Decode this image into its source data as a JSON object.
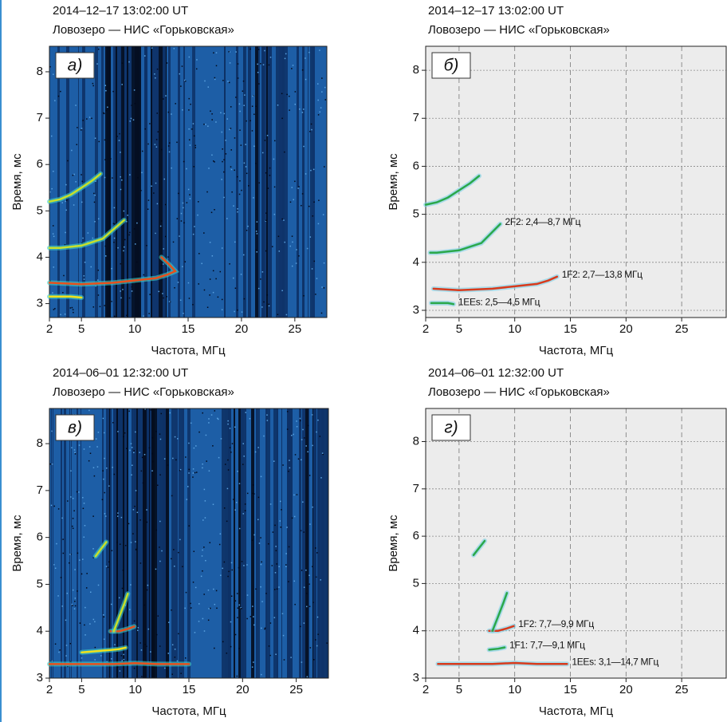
{
  "chart_data": [
    {
      "type": "ionogram",
      "title": "2014–12–17 13:02:00 UT",
      "subtitle": "Ловозеро — НИС «Горьковская»",
      "label": "а)",
      "xlabel": "Частота, МГц",
      "ylabel": "Время, мс",
      "background": "sounding",
      "grid": false,
      "xlim": [
        2,
        28
      ],
      "ylim": [
        2.7,
        8.55
      ],
      "xticks": [
        2,
        5,
        10,
        15,
        20,
        25
      ],
      "yticks": [
        3,
        4,
        5,
        6,
        7,
        8
      ],
      "series": [
        {
          "color": "#f2e21a",
          "x": [
            2,
            3,
            4,
            5
          ],
          "y": [
            3.15,
            3.15,
            3.15,
            3.13
          ]
        },
        {
          "color": "#e8501c",
          "x": [
            2,
            5,
            8,
            10,
            12,
            13,
            13.8,
            13.2,
            12.5
          ],
          "y": [
            3.45,
            3.42,
            3.45,
            3.5,
            3.55,
            3.62,
            3.7,
            3.85,
            4.0
          ]
        },
        {
          "color": "#c8e02a",
          "x": [
            2,
            3,
            5,
            7,
            9
          ],
          "y": [
            4.2,
            4.2,
            4.25,
            4.4,
            4.8
          ]
        },
        {
          "color": "#c8e02a",
          "x": [
            2,
            3,
            4,
            5,
            6,
            6.8
          ],
          "y": [
            5.2,
            5.25,
            5.35,
            5.5,
            5.65,
            5.8
          ]
        }
      ]
    },
    {
      "type": "ionogram",
      "title": "2014–12–17 13:02:00 UT",
      "subtitle": "Ловозеро — НИС «Горьковская»",
      "label": "б)",
      "xlabel": "Частота, МГц",
      "ylabel": "Время, мс",
      "background": "clean",
      "grid": true,
      "xlim": [
        2,
        29
      ],
      "ylim": [
        2.85,
        8.5
      ],
      "xticks": [
        2,
        5,
        10,
        15,
        20,
        25
      ],
      "yticks": [
        3,
        4,
        5,
        6,
        7,
        8
      ],
      "series": [
        {
          "name": "1EEs: 2,5—4,5 МГц",
          "color": "#2aa84a",
          "x": [
            2.5,
            3,
            4,
            4.5
          ],
          "y": [
            3.15,
            3.15,
            3.15,
            3.13
          ]
        },
        {
          "name": "1F2: 2,7—13,8 МГц",
          "color": "#d83a1c",
          "x": [
            2.7,
            5,
            8,
            10,
            12,
            13,
            13.8
          ],
          "y": [
            3.45,
            3.42,
            3.45,
            3.5,
            3.55,
            3.62,
            3.7
          ]
        },
        {
          "name": "2F2: 2,4—8,7 МГц",
          "color": "#2aa84a",
          "x": [
            2.4,
            3,
            5,
            7,
            8.7
          ],
          "y": [
            4.2,
            4.2,
            4.25,
            4.4,
            4.8
          ]
        },
        {
          "color": "#2aa84a",
          "x": [
            2,
            3,
            4,
            5,
            6,
            6.8
          ],
          "y": [
            5.2,
            5.25,
            5.35,
            5.5,
            5.65,
            5.8
          ]
        }
      ]
    },
    {
      "type": "ionogram",
      "title": "2014–06–01 12:32:00 UT",
      "subtitle": "Ловозеро — НИС «Горьковская»",
      "label": "в)",
      "xlabel": "Частота, МГц",
      "ylabel": "Время, мс",
      "background": "sounding",
      "grid": false,
      "xlim": [
        2,
        28
      ],
      "ylim": [
        3,
        8.75
      ],
      "xticks": [
        2,
        5,
        10,
        15,
        20,
        25
      ],
      "yticks": [
        3,
        4,
        5,
        6,
        7,
        8
      ],
      "series": [
        {
          "color": "#e8501c",
          "x": [
            2,
            5,
            8,
            10,
            12,
            15
          ],
          "y": [
            3.3,
            3.3,
            3.3,
            3.32,
            3.3,
            3.3
          ]
        },
        {
          "color": "#f2e21a",
          "x": [
            5,
            7.7,
            8.5,
            9.1
          ],
          "y": [
            3.55,
            3.6,
            3.62,
            3.65
          ]
        },
        {
          "color": "#e8501c",
          "x": [
            7.7,
            8.5,
            9.3,
            9.9
          ],
          "y": [
            4.0,
            4.0,
            4.05,
            4.1
          ]
        },
        {
          "color": "#c8e02a",
          "x": [
            8,
            8.5,
            9,
            9.3
          ],
          "y": [
            4.0,
            4.3,
            4.6,
            4.8
          ]
        },
        {
          "color": "#c8e02a",
          "x": [
            6.3,
            6.8,
            7.3
          ],
          "y": [
            5.6,
            5.75,
            5.9
          ]
        }
      ]
    },
    {
      "type": "ionogram",
      "title": "2014–06–01 12:32:00 UT",
      "subtitle": "Ловозеро — НИС «Горьковская»",
      "label": "г)",
      "xlabel": "Частота, МГц",
      "ylabel": "Время, мс",
      "background": "clean",
      "grid": true,
      "xlim": [
        2,
        29
      ],
      "ylim": [
        3,
        8.7
      ],
      "xticks": [
        2,
        5,
        10,
        15,
        20,
        25
      ],
      "yticks": [
        3,
        4,
        5,
        6,
        7,
        8
      ],
      "series": [
        {
          "name": "1EEs: 3,1—14,7 МГц",
          "color": "#d83a1c",
          "x": [
            3.1,
            5,
            8,
            10,
            12,
            14.7
          ],
          "y": [
            3.3,
            3.3,
            3.3,
            3.32,
            3.3,
            3.3
          ]
        },
        {
          "name": "1F1: 7,7—9,1 МГц",
          "color": "#2aa84a",
          "x": [
            7.7,
            8.5,
            9.1
          ],
          "y": [
            3.6,
            3.62,
            3.65
          ]
        },
        {
          "name": "1F2: 7,7—9,9 МГц",
          "color": "#d83a1c",
          "x": [
            7.7,
            8.5,
            9.3,
            9.9
          ],
          "y": [
            4.0,
            4.0,
            4.05,
            4.1
          ]
        },
        {
          "color": "#2aa84a",
          "x": [
            8,
            8.5,
            9,
            9.3
          ],
          "y": [
            4.0,
            4.3,
            4.6,
            4.8
          ]
        },
        {
          "color": "#2aa84a",
          "x": [
            6.3,
            6.8,
            7.3
          ],
          "y": [
            5.6,
            5.75,
            5.9
          ]
        }
      ]
    }
  ]
}
